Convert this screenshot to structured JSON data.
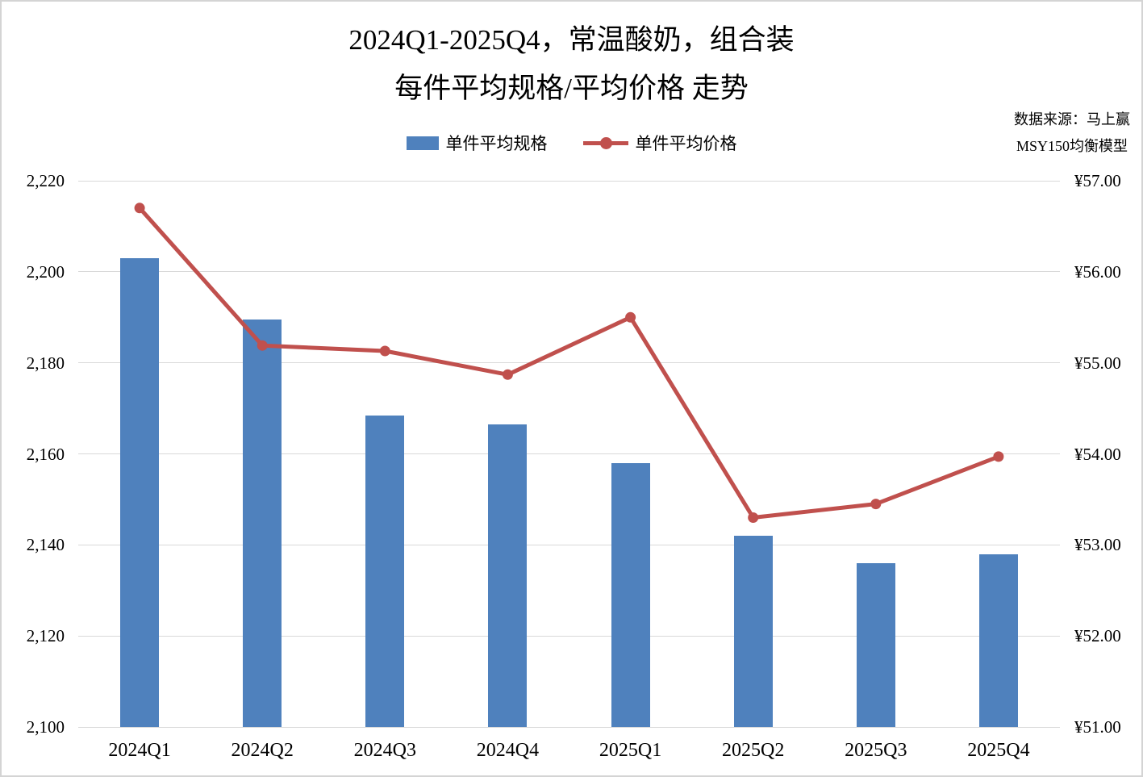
{
  "title": {
    "line1": "2024Q1-2025Q4，常温酸奶，组合装",
    "line2": "每件平均规格/平均价格 走势"
  },
  "source": {
    "line1": "数据来源：马上赢",
    "line2": "MSY150均衡模型"
  },
  "legend": {
    "spec_label": "单件平均规格",
    "price_label": "单件平均价格"
  },
  "colors": {
    "bar": "#4F81BD",
    "line": "#C0504D",
    "gridline": "#d9d9d9",
    "text": "#000000"
  },
  "chart_data": {
    "type": "bar",
    "combo": "bar+line",
    "title": "2024Q1-2025Q4，常温酸奶，组合装 每件平均规格/平均价格 走势",
    "categories": [
      "2024Q1",
      "2024Q2",
      "2024Q3",
      "2024Q4",
      "2025Q1",
      "2025Q2",
      "2025Q3",
      "2025Q4"
    ],
    "series": [
      {
        "name": "单件平均规格",
        "type": "bar",
        "axis": "left",
        "color": "#4F81BD",
        "values": [
          2203,
          2189.5,
          2168.5,
          2166.5,
          2158,
          2142,
          2136,
          2138
        ]
      },
      {
        "name": "单件平均价格",
        "type": "line",
        "axis": "right",
        "color": "#C0504D",
        "values": [
          56.7,
          55.19,
          55.13,
          54.87,
          55.5,
          53.3,
          53.45,
          53.97
        ]
      }
    ],
    "left_axis": {
      "min": 2100,
      "max": 2220,
      "step": 20,
      "tick_labels_top_to_bottom": [
        "2,220",
        "2,200",
        "2,180",
        "2,160",
        "2,140",
        "2,120",
        "2,100"
      ]
    },
    "right_axis": {
      "min": 51,
      "max": 57,
      "step": 1,
      "tick_labels_top_to_bottom": [
        "¥57.00",
        "¥56.00",
        "¥55.00",
        "¥54.00",
        "¥53.00",
        "¥52.00",
        "¥51.00"
      ]
    },
    "grid": true,
    "legend_position": "top"
  }
}
